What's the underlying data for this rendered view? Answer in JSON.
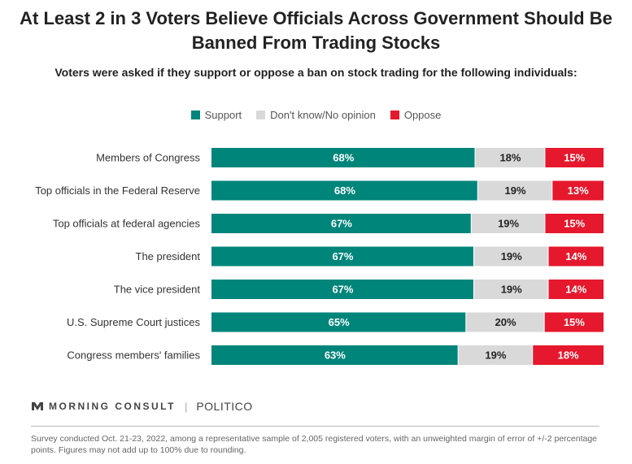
{
  "title": "At Least 2 in 3 Voters Believe Officials Across Government Should Be Banned From Trading Stocks",
  "subtitle": "Voters were asked if they support or oppose a ban on stock trading for the following individuals:",
  "colors": {
    "support": "#00857a",
    "dontknow": "#d9d9d9",
    "oppose": "#e5182d"
  },
  "chart_data": {
    "type": "bar",
    "orientation": "horizontal",
    "stacked": true,
    "legend_position": "top",
    "categories": [
      "Members of Congress",
      "Top officials in the Federal Reserve",
      "Top officials at federal agencies",
      "The president",
      "The vice president",
      "U.S. Supreme Court justices",
      "Congress members' families"
    ],
    "series": [
      {
        "name": "Support",
        "values": [
          68,
          68,
          67,
          67,
          67,
          65,
          63
        ],
        "labels": [
          "68%",
          "68%",
          "67%",
          "67%",
          "67%",
          "65%",
          "63%"
        ]
      },
      {
        "name": "Don't know/No opinion",
        "values": [
          18,
          19,
          19,
          19,
          19,
          20,
          19
        ],
        "labels": [
          "18%",
          "19%",
          "19%",
          "19%",
          "19%",
          "20%",
          "19%"
        ]
      },
      {
        "name": "Oppose",
        "values": [
          15,
          13,
          15,
          14,
          14,
          15,
          18
        ],
        "labels": [
          "15%",
          "13%",
          "15%",
          "14%",
          "14%",
          "15%",
          "18%"
        ]
      }
    ]
  },
  "brand": {
    "morning_consult": "MORNING CONSULT",
    "separator": "|",
    "politico": "POLITICO"
  },
  "footnote": "Survey conducted Oct. 21-23, 2022, among a representative sample of 2,005 registered voters, with an unweighted margin of error of +/-2 percentage points. Figures may not add up to 100% due to rounding."
}
